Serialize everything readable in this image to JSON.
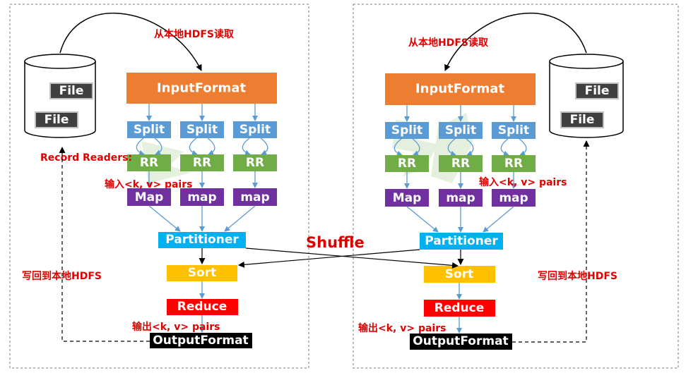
{
  "labels": {
    "read_local_hdfs": "从本地HDFS读取",
    "input_format": "InputFormat",
    "file": "File",
    "split": "Split",
    "rr": "RR",
    "map_cap": "Map",
    "map_lower": "map",
    "record_readers": "Record Readers:",
    "input_pairs": "输入<k, v> pairs",
    "partitioner": "Partitioner",
    "shuffle": "Shuffle",
    "sort": "Sort",
    "reduce": "Reduce",
    "write_local_hdfs": "写回到本地HDFS",
    "output_pairs": "输出<k, v> pairs",
    "output_format": "OutputFormat"
  },
  "colors": {
    "input_format": "#ed7d31",
    "split": "#5b9bd5",
    "rr": "#70ad47",
    "map": "#7030a0",
    "partitioner": "#00b0f0",
    "sort": "#ffc000",
    "reduce": "#ff0000",
    "output_format": "#000000",
    "file_box": "#404040",
    "annotation": "#e00000",
    "arrow": "#5b9bd5"
  }
}
